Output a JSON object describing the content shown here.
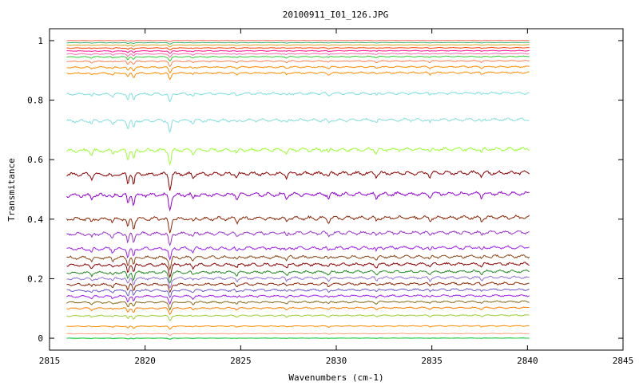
{
  "chart_data": {
    "type": "line",
    "title": "20100911_I01_126.JPG",
    "xlabel": "Wavenumbers (cm-1)",
    "ylabel": "Transmitance",
    "xlim": [
      2815,
      2845
    ],
    "ylim": [
      -0.04,
      1.04
    ],
    "x_range": [
      2815.9,
      2840.1
    ],
    "x_ticks": [
      2815,
      2820,
      2825,
      2830,
      2835,
      2840,
      2845
    ],
    "y_ticks": [
      0,
      0.2,
      0.4,
      0.6,
      0.8,
      1
    ],
    "grid": false,
    "legend": "none",
    "absorption_lines_cm1": [
      2817.2,
      2818.3,
      2819.1,
      2819.4,
      2821.3,
      2822.5,
      2824.8,
      2827.4,
      2829.6,
      2832.1,
      2834.9,
      2837.6
    ],
    "series": [
      {
        "baseline": 0.0,
        "color": "#00c8c8"
      },
      {
        "baseline": 0.0,
        "color": "#32cd32"
      },
      {
        "baseline": 0.015,
        "color": "#ffa07a"
      },
      {
        "baseline": 0.04,
        "color": "#ff8c00"
      },
      {
        "baseline": 0.075,
        "color": "#9acd32"
      },
      {
        "baseline": 0.1,
        "color": "#ff7f00"
      },
      {
        "baseline": 0.12,
        "color": "#8b6914"
      },
      {
        "baseline": 0.14,
        "color": "#a020f0"
      },
      {
        "baseline": 0.16,
        "color": "#6a5acd"
      },
      {
        "baseline": 0.18,
        "color": "#8b2500"
      },
      {
        "baseline": 0.2,
        "color": "#9370db"
      },
      {
        "baseline": 0.22,
        "color": "#228b22"
      },
      {
        "baseline": 0.245,
        "color": "#8b0000"
      },
      {
        "baseline": 0.27,
        "color": "#8b4513"
      },
      {
        "baseline": 0.3,
        "color": "#a020f0"
      },
      {
        "baseline": 0.35,
        "color": "#9932cc"
      },
      {
        "baseline": 0.4,
        "color": "#8b2500"
      },
      {
        "baseline": 0.48,
        "color": "#9400d3"
      },
      {
        "baseline": 0.55,
        "color": "#8b0000"
      },
      {
        "baseline": 0.63,
        "color": "#9aff32"
      },
      {
        "baseline": 0.73,
        "color": "#87dede"
      },
      {
        "baseline": 0.82,
        "color": "#7fdfdf"
      },
      {
        "baseline": 0.89,
        "color": "#ff8c00"
      },
      {
        "baseline": 0.91,
        "color": "#ff8c00"
      },
      {
        "baseline": 0.93,
        "color": "#ff7f50"
      },
      {
        "baseline": 0.945,
        "color": "#32cd32"
      },
      {
        "baseline": 0.955,
        "color": "#ff69b4"
      },
      {
        "baseline": 0.965,
        "color": "#ff1493"
      },
      {
        "baseline": 0.975,
        "color": "#ff4500"
      },
      {
        "baseline": 0.985,
        "color": "#daa520"
      },
      {
        "baseline": 0.993,
        "color": "#3cb371"
      },
      {
        "baseline": 1.0,
        "color": "#ff6347"
      }
    ]
  }
}
